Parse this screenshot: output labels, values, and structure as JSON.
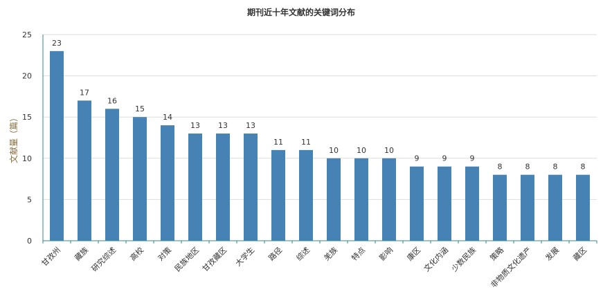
{
  "chart_data": {
    "type": "bar",
    "title": "期刊近十年文献的关键词分布",
    "ylabel": "文献量（篇）",
    "xlabel": "",
    "ylim": [
      0,
      25
    ],
    "yticks": [
      0,
      5,
      10,
      15,
      20,
      25
    ],
    "grid": true,
    "bar_color": "#4682B4",
    "categories": [
      "甘孜州",
      "藏族",
      "研究综述",
      "高校",
      "对策",
      "民族地区",
      "甘孜藏区",
      "大学生",
      "路径",
      "综述",
      "羌族",
      "特点",
      "影响",
      "康区",
      "文化内涵",
      "少数民族",
      "策略",
      "非物质文化遗产",
      "发展",
      "藏区"
    ],
    "values": [
      23,
      17,
      16,
      15,
      14,
      13,
      13,
      13,
      11,
      11,
      10,
      10,
      10,
      9,
      9,
      9,
      8,
      8,
      8,
      8
    ]
  }
}
